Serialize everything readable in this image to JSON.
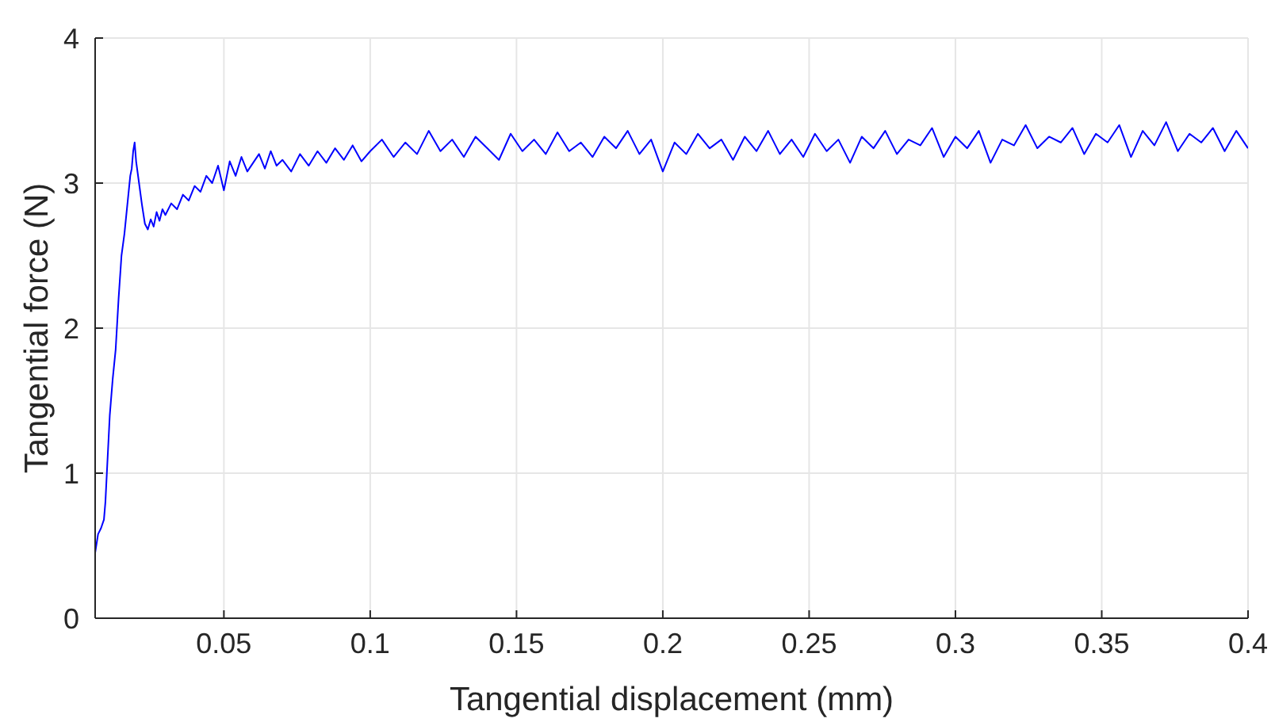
{
  "chart_data": {
    "type": "line",
    "xlabel": "Tangential displacement (mm)",
    "ylabel": "Tangential force (N)",
    "xlim": [
      0.006,
      0.4
    ],
    "xticks": [
      0.05,
      0.1,
      0.15,
      0.2,
      0.25,
      0.3,
      0.35,
      0.4
    ],
    "ylim": [
      0,
      4
    ],
    "yticks": [
      0,
      1,
      2,
      3,
      4
    ],
    "grid": true,
    "line_style": "solid",
    "marker": "none",
    "series": [
      {
        "color": "#0000ff",
        "x": [
          0.006,
          0.007,
          0.008,
          0.009,
          0.0095,
          0.01,
          0.011,
          0.012,
          0.013,
          0.014,
          0.015,
          0.016,
          0.017,
          0.018,
          0.0185,
          0.019,
          0.0195,
          0.02,
          0.021,
          0.022,
          0.023,
          0.024,
          0.025,
          0.026,
          0.027,
          0.028,
          0.029,
          0.03,
          0.032,
          0.034,
          0.036,
          0.038,
          0.04,
          0.042,
          0.044,
          0.046,
          0.048,
          0.05,
          0.052,
          0.054,
          0.056,
          0.058,
          0.06,
          0.062,
          0.064,
          0.066,
          0.068,
          0.07,
          0.073,
          0.076,
          0.079,
          0.082,
          0.085,
          0.088,
          0.091,
          0.094,
          0.097,
          0.1,
          0.104,
          0.108,
          0.112,
          0.116,
          0.12,
          0.124,
          0.128,
          0.132,
          0.136,
          0.14,
          0.144,
          0.148,
          0.152,
          0.156,
          0.16,
          0.164,
          0.168,
          0.172,
          0.176,
          0.18,
          0.184,
          0.188,
          0.192,
          0.196,
          0.2,
          0.204,
          0.208,
          0.212,
          0.216,
          0.22,
          0.224,
          0.228,
          0.232,
          0.236,
          0.24,
          0.244,
          0.248,
          0.252,
          0.256,
          0.26,
          0.264,
          0.268,
          0.272,
          0.276,
          0.28,
          0.284,
          0.288,
          0.292,
          0.296,
          0.3,
          0.304,
          0.308,
          0.312,
          0.316,
          0.32,
          0.324,
          0.328,
          0.332,
          0.336,
          0.34,
          0.344,
          0.348,
          0.352,
          0.356,
          0.36,
          0.364,
          0.368,
          0.372,
          0.376,
          0.38,
          0.384,
          0.388,
          0.392,
          0.396,
          0.4
        ],
        "values": [
          0.45,
          0.58,
          0.62,
          0.68,
          0.8,
          1.0,
          1.4,
          1.65,
          1.85,
          2.2,
          2.5,
          2.65,
          2.85,
          3.05,
          3.1,
          3.22,
          3.28,
          3.15,
          3.0,
          2.85,
          2.72,
          2.68,
          2.75,
          2.7,
          2.8,
          2.74,
          2.82,
          2.78,
          2.86,
          2.82,
          2.92,
          2.88,
          2.98,
          2.94,
          3.05,
          3.0,
          3.12,
          2.95,
          3.15,
          3.05,
          3.18,
          3.08,
          3.14,
          3.2,
          3.1,
          3.22,
          3.12,
          3.16,
          3.08,
          3.2,
          3.12,
          3.22,
          3.14,
          3.24,
          3.16,
          3.26,
          3.15,
          3.22,
          3.3,
          3.18,
          3.28,
          3.2,
          3.36,
          3.22,
          3.3,
          3.18,
          3.32,
          3.24,
          3.16,
          3.34,
          3.22,
          3.3,
          3.2,
          3.35,
          3.22,
          3.28,
          3.18,
          3.32,
          3.24,
          3.36,
          3.2,
          3.3,
          3.08,
          3.28,
          3.2,
          3.34,
          3.24,
          3.3,
          3.16,
          3.32,
          3.22,
          3.36,
          3.2,
          3.3,
          3.18,
          3.34,
          3.22,
          3.3,
          3.14,
          3.32,
          3.24,
          3.36,
          3.2,
          3.3,
          3.26,
          3.38,
          3.18,
          3.32,
          3.24,
          3.36,
          3.14,
          3.3,
          3.26,
          3.4,
          3.24,
          3.32,
          3.28,
          3.38,
          3.2,
          3.34,
          3.28,
          3.4,
          3.18,
          3.36,
          3.26,
          3.42,
          3.22,
          3.34,
          3.28,
          3.38,
          3.22,
          3.36,
          3.24
        ]
      }
    ]
  }
}
